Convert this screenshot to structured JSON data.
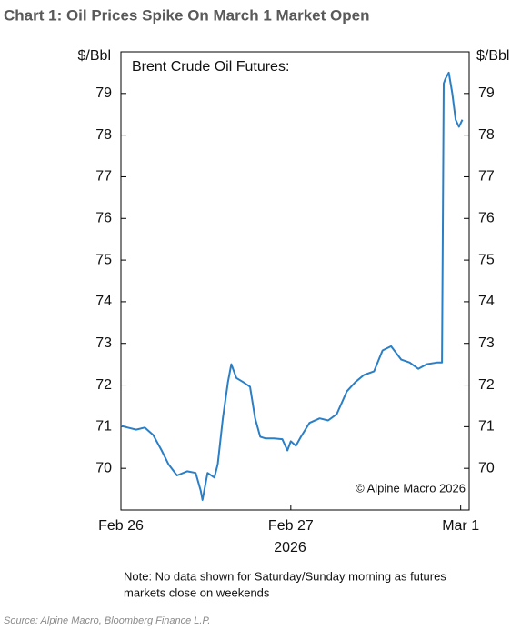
{
  "chart_data": {
    "type": "line",
    "title": "Chart 1: Oil Prices Spike On March 1 Market Open",
    "annotation": "Brent Crude Oil Futures:",
    "copyright": "© Alpine Macro 2026",
    "y_label": "$/Bbl",
    "x_label": "2026",
    "note": [
      "Note: No data shown for Saturday/Sunday morning as futures",
      "markets close on weekends"
    ],
    "source": "Source: Alpine Macro, Bloomberg Finance L.P.",
    "xlim": [
      0,
      2.05
    ],
    "xticks": [
      {
        "value": 0,
        "label": "Feb 26"
      },
      {
        "value": 1,
        "label": "Feb 27"
      },
      {
        "value": 2,
        "label": "Mar 1"
      }
    ],
    "ylim": [
      69,
      80
    ],
    "yticks": [
      70,
      71,
      72,
      73,
      74,
      75,
      76,
      77,
      78,
      79
    ],
    "series": [
      {
        "name": "Brent Crude Oil Futures",
        "color": "#2b7fc6",
        "x": [
          0,
          0.04,
          0.09,
          0.14,
          0.19,
          0.24,
          0.28,
          0.33,
          0.39,
          0.44,
          0.47,
          0.48,
          0.51,
          0.55,
          0.57,
          0.6,
          0.63,
          0.65,
          0.68,
          0.72,
          0.76,
          0.79,
          0.82,
          0.85,
          0.9,
          0.95,
          0.98,
          1.0,
          1.03,
          1.06,
          1.11,
          1.17,
          1.22,
          1.27,
          1.33,
          1.38,
          1.43,
          1.49,
          1.54,
          1.59,
          1.65,
          1.7,
          1.75,
          1.8,
          1.86,
          1.89,
          1.9,
          1.91,
          1.93,
          1.95,
          1.97,
          1.99,
          2.01
        ],
        "values": [
          71.02,
          70.98,
          70.93,
          70.98,
          70.8,
          70.43,
          70.1,
          69.83,
          69.93,
          69.89,
          69.46,
          69.24,
          69.89,
          69.78,
          70.1,
          71.2,
          72.07,
          72.5,
          72.17,
          72.07,
          71.96,
          71.2,
          70.76,
          70.72,
          70.72,
          70.7,
          70.43,
          70.65,
          70.54,
          70.76,
          71.09,
          71.2,
          71.15,
          71.3,
          71.85,
          72.07,
          72.24,
          72.33,
          72.83,
          72.93,
          72.61,
          72.54,
          72.39,
          72.5,
          72.54,
          72.54,
          79.24,
          79.35,
          79.5,
          79.02,
          78.37,
          78.2,
          78.37
        ]
      }
    ]
  }
}
